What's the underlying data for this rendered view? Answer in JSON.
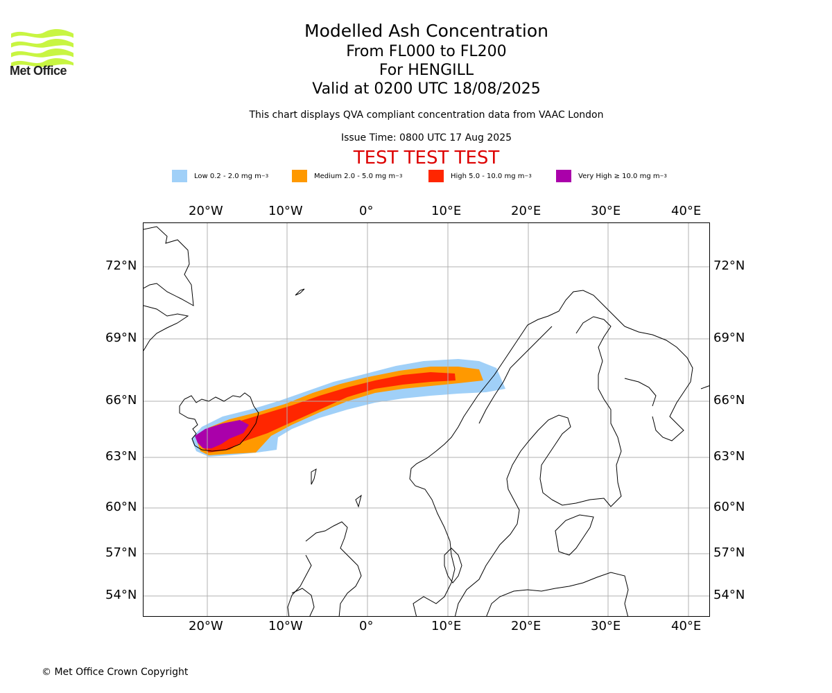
{
  "header": {
    "title": "Modelled Ash Concentration",
    "subtitle_levels": "From FL000 to FL200",
    "subtitle_volcano": "For HENGILL",
    "subtitle_valid": "Valid at 0200 UTC 18/08/2025",
    "compliance_note": "This chart displays QVA compliant concentration data from VAAC London",
    "issue_time": "Issue Time: 0800 UTC 17 Aug 2025",
    "test_banner": "TEST TEST TEST"
  },
  "logo": {
    "text": "Met Office"
  },
  "legend": [
    {
      "label": "Low 0.2 - 2.0 mg m",
      "color": "#a0d0f8"
    },
    {
      "label": "Medium 2.0 - 5.0 mg m",
      "color": "#ff9900"
    },
    {
      "label": "High 5.0 - 10.0 mg m",
      "color": "#ff2600"
    },
    {
      "label": "Very High ≥ 10.0 mg m",
      "color": "#aa00aa"
    }
  ],
  "legend_unit_sup": "−3",
  "axes": {
    "lon_labels": [
      "20°W",
      "10°W",
      "0°",
      "10°E",
      "20°E",
      "30°E",
      "40°E"
    ],
    "lat_labels": [
      "72°N",
      "69°N",
      "66°N",
      "63°N",
      "60°N",
      "57°N",
      "54°N"
    ]
  },
  "footer": {
    "copyright": "© Met Office Crown Copyright"
  },
  "colors": {
    "banner": "#dd0000",
    "grid": "#b0b0b0",
    "coast": "#000000",
    "logo": "#c8f542"
  }
}
